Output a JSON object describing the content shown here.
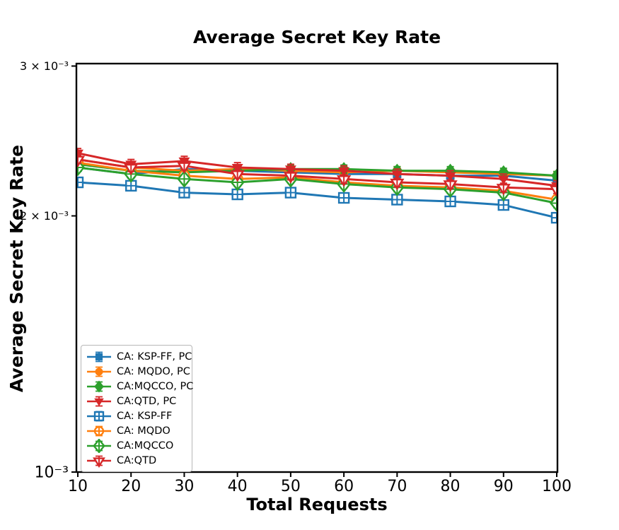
{
  "figure": {
    "background": "#ffffff"
  },
  "chart_data": {
    "type": "line",
    "title": "Average Secret Key Rate",
    "xlabel": "Total Requests",
    "ylabel": "Average Secret Key Rate",
    "yscale": "log",
    "grid": false,
    "legend_position": "lower-left",
    "x": [
      10,
      20,
      30,
      40,
      50,
      60,
      70,
      80,
      90,
      100
    ],
    "xlim": [
      10,
      100
    ],
    "ylim": [
      0.001,
      0.00302
    ],
    "y_ticks": [
      {
        "value": 0.003,
        "label": "3 × 10⁻³",
        "major": false
      },
      {
        "value": 0.002,
        "label": "2 × 10⁻³",
        "major": false
      },
      {
        "value": 0.001,
        "label": "10⁻³",
        "major": true
      }
    ],
    "series": [
      {
        "label": "CA: KSP-FF, PC",
        "color": "#1f77b4",
        "marker": "square-filled",
        "values": [
          0.00228,
          0.00224,
          0.00227,
          0.00226,
          0.00225,
          0.00224,
          0.00224,
          0.00223,
          0.00223,
          0.0022
        ],
        "yerr": 2.5e-05
      },
      {
        "label": "CA: MQDO, PC",
        "color": "#ff7f0e",
        "marker": "circle-filled",
        "values": [
          0.00233,
          0.00228,
          0.00226,
          0.00227,
          0.00226,
          0.00225,
          0.00226,
          0.00225,
          0.00224,
          0.00223
        ],
        "yerr": 2.5e-05
      },
      {
        "label": "CA:MQCCO, PC",
        "color": "#2ca02c",
        "marker": "diamond-filled",
        "values": [
          0.0023,
          0.00226,
          0.00225,
          0.00226,
          0.00227,
          0.00227,
          0.00226,
          0.00226,
          0.00225,
          0.00223
        ],
        "yerr": 2.5e-05
      },
      {
        "label": "CA:QTD, PC",
        "color": "#d62728",
        "marker": "tri-down-filled",
        "values": [
          0.00237,
          0.0023,
          0.00232,
          0.00228,
          0.00227,
          0.00226,
          0.00224,
          0.00223,
          0.00221,
          0.00217
        ],
        "yerr": 3e-05
      },
      {
        "label": "CA: KSP-FF",
        "color": "#1f77b4",
        "marker": "square-plus",
        "values": [
          0.00219,
          0.00217,
          0.00213,
          0.00212,
          0.00213,
          0.0021,
          0.00209,
          0.00208,
          0.00206,
          0.00199
        ],
        "yerr": 2.5e-05
      },
      {
        "label": "CA: MQDO",
        "color": "#ff7f0e",
        "marker": "circle-plus",
        "values": [
          0.00231,
          0.00226,
          0.00223,
          0.00221,
          0.00222,
          0.00219,
          0.00217,
          0.00216,
          0.00214,
          0.00209
        ],
        "yerr": 2.5e-05
      },
      {
        "label": "CA:MQCCO",
        "color": "#2ca02c",
        "marker": "diamond-plus",
        "values": [
          0.00228,
          0.00224,
          0.00221,
          0.00219,
          0.00221,
          0.00218,
          0.00216,
          0.00215,
          0.00213,
          0.00207
        ],
        "yerr": 2.5e-05
      },
      {
        "label": "CA:QTD",
        "color": "#d62728",
        "marker": "tri-down-plus",
        "values": [
          0.00233,
          0.00228,
          0.00229,
          0.00224,
          0.00223,
          0.00221,
          0.00219,
          0.00218,
          0.00216,
          0.00215
        ],
        "yerr": 2.5e-05
      }
    ]
  }
}
